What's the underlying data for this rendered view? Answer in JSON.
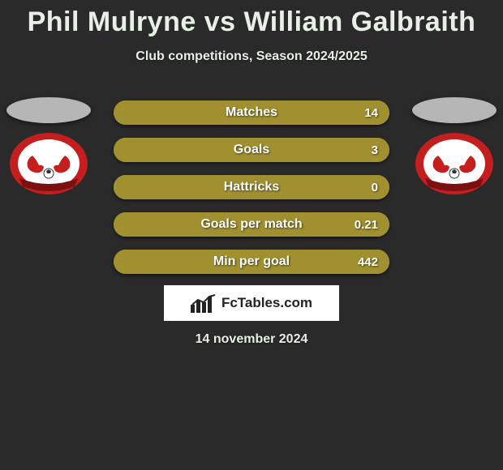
{
  "header": {
    "title": "Phil Mulryne vs William Galbraith",
    "subtitle": "Club competitions, Season 2024/2025"
  },
  "players": {
    "left": {
      "name": "Phil Mulryne",
      "club": "Leyton Orient"
    },
    "right": {
      "name": "William Galbraith",
      "club": "Leyton Orient"
    }
  },
  "club_badge": {
    "outer_color": "#c41e1e",
    "inner_color": "#ffffff",
    "banner_color": "#7a1010",
    "banner_text": "FOOTBALL CLUB",
    "arc_text": "LEYTON ORIENT"
  },
  "stats": {
    "bar_bg": "#a09030",
    "fill_left_color": "#a09030",
    "fill_right_color": "#a09030",
    "rows": [
      {
        "label": "Matches",
        "left": "",
        "right": "14",
        "fill_pct": 100
      },
      {
        "label": "Goals",
        "left": "",
        "right": "3",
        "fill_pct": 100
      },
      {
        "label": "Hattricks",
        "left": "",
        "right": "0",
        "fill_pct": 100
      },
      {
        "label": "Goals per match",
        "left": "",
        "right": "0.21",
        "fill_pct": 100
      },
      {
        "label": "Min per goal",
        "left": "",
        "right": "442",
        "fill_pct": 100
      }
    ]
  },
  "branding": {
    "text": "FcTables.com"
  },
  "date": "14 november 2024",
  "colors": {
    "page_bg": "#2a2a2a",
    "text": "#e8efe6"
  }
}
